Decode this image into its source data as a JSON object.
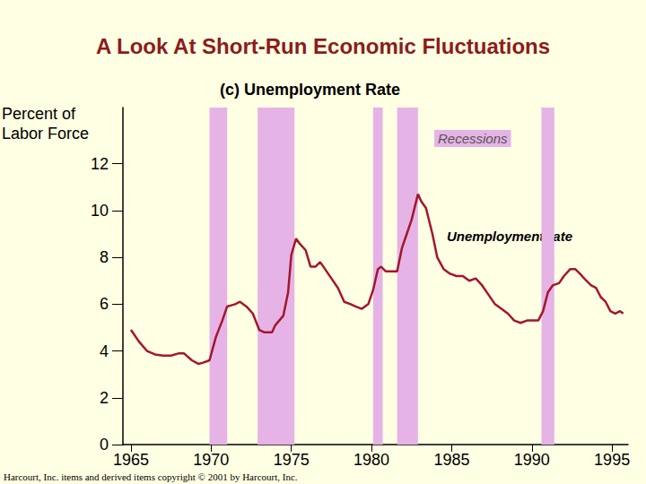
{
  "chart_data": {
    "type": "line",
    "title": "A Look At Short-Run Economic Fluctuations",
    "subtitle": "(c) Unemployment Rate",
    "y_label": "Percent of\nLabor Force",
    "footnote": "Harcourt, Inc. items and derived items copyright © 2001 by Harcourt, Inc.",
    "x": [
      1965.0,
      1965.5,
      1966.0,
      1966.5,
      1967.0,
      1967.5,
      1968.0,
      1968.3,
      1968.8,
      1969.2,
      1969.5,
      1969.9,
      1970.3,
      1970.7,
      1971.0,
      1971.5,
      1971.8,
      1972.2,
      1972.6,
      1973.0,
      1973.3,
      1973.8,
      1974.0,
      1974.5,
      1974.8,
      1975.0,
      1975.3,
      1975.5,
      1975.9,
      1976.2,
      1976.5,
      1976.8,
      1977.1,
      1977.5,
      1977.9,
      1978.3,
      1978.7,
      1979.0,
      1979.4,
      1979.8,
      1980.1,
      1980.4,
      1980.6,
      1980.9,
      1981.2,
      1981.6,
      1981.9,
      1982.2,
      1982.5,
      1982.9,
      1983.1,
      1983.4,
      1983.8,
      1984.1,
      1984.5,
      1984.9,
      1985.3,
      1985.7,
      1986.1,
      1986.5,
      1986.9,
      1987.3,
      1987.7,
      1988.1,
      1988.5,
      1988.9,
      1989.3,
      1989.7,
      1990.0,
      1990.4,
      1990.7,
      1991.0,
      1991.3,
      1991.7,
      1992.0,
      1992.4,
      1992.7,
      1993.0,
      1993.4,
      1993.7,
      1994.0,
      1994.3,
      1994.6,
      1994.9,
      1995.2,
      1995.5,
      1995.7
    ],
    "series": [
      {
        "name": "Unemployment rate",
        "color": "#a3162e",
        "values": [
          4.9,
          4.4,
          4.0,
          3.85,
          3.8,
          3.8,
          3.9,
          3.9,
          3.6,
          3.45,
          3.5,
          3.6,
          4.6,
          5.3,
          5.9,
          6.0,
          6.1,
          5.9,
          5.6,
          4.9,
          4.8,
          4.8,
          5.1,
          5.5,
          6.5,
          8.1,
          8.8,
          8.6,
          8.3,
          7.6,
          7.6,
          7.8,
          7.5,
          7.1,
          6.7,
          6.1,
          6.0,
          5.9,
          5.8,
          6.0,
          6.6,
          7.5,
          7.6,
          7.4,
          7.4,
          7.4,
          8.4,
          9.0,
          9.6,
          10.7,
          10.4,
          10.1,
          9.0,
          8.0,
          7.5,
          7.3,
          7.2,
          7.2,
          7.0,
          7.1,
          6.8,
          6.4,
          6.0,
          5.8,
          5.6,
          5.3,
          5.2,
          5.3,
          5.3,
          5.3,
          5.7,
          6.5,
          6.8,
          6.9,
          7.2,
          7.5,
          7.5,
          7.3,
          7.0,
          6.8,
          6.7,
          6.3,
          6.1,
          5.7,
          5.6,
          5.7,
          5.6
        ]
      }
    ],
    "recessions": {
      "label": "Recessions",
      "color": "#e6b3e6",
      "periods": [
        [
          1969.9,
          1971.0
        ],
        [
          1972.9,
          1975.2
        ],
        [
          1980.1,
          1980.7
        ],
        [
          1981.6,
          1982.9
        ],
        [
          1990.6,
          1991.4
        ]
      ]
    },
    "xlim": [
      1964.5,
      1996
    ],
    "xticks": [
      1965,
      1970,
      1975,
      1980,
      1985,
      1990,
      1995
    ],
    "ylim": [
      0,
      14.4
    ],
    "yticks": [
      0,
      2,
      4,
      6,
      8,
      10,
      12
    ],
    "grid": false
  }
}
